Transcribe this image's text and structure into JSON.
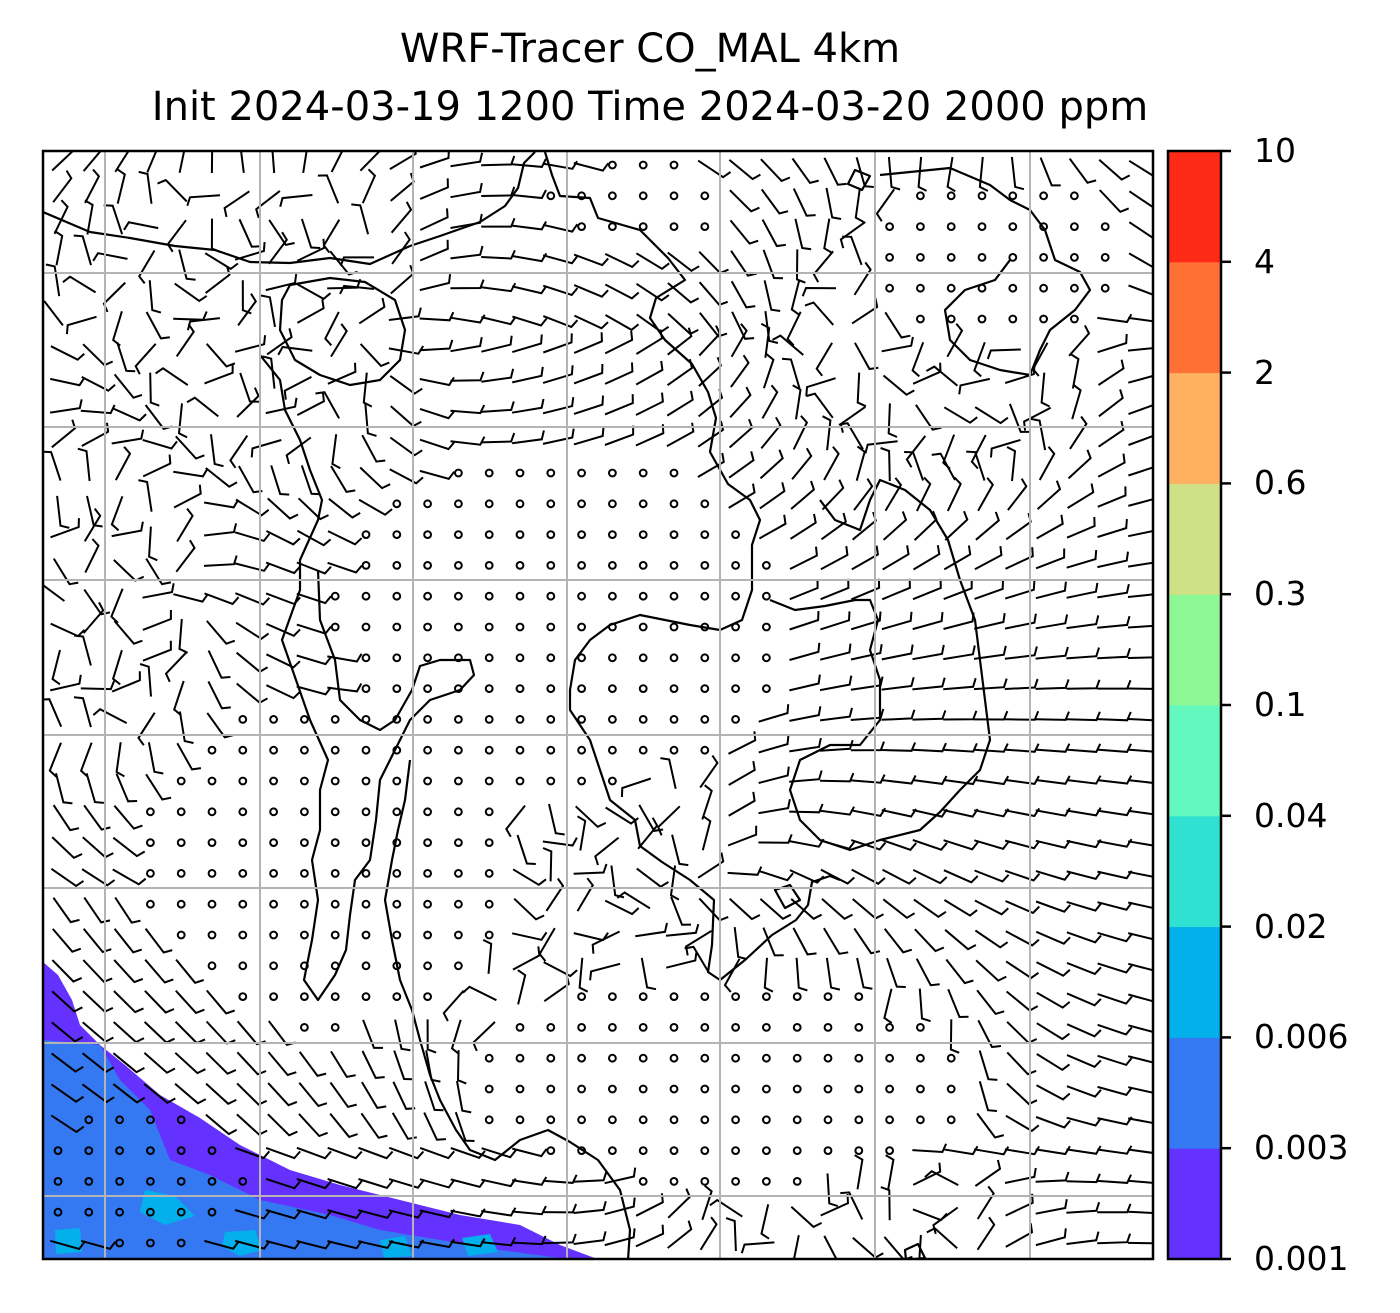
{
  "title": {
    "line1": "WRF-Tracer CO_MAL 4km",
    "line2": "Init 2024-03-19 1200 Time 2024-03-20 2000 ppm"
  },
  "colorbar": {
    "ticks": [
      "0.001",
      "0.003",
      "0.006",
      "0.02",
      "0.04",
      "0.1",
      "0.3",
      "0.6",
      "2",
      "4",
      "10"
    ],
    "colors": [
      "#6531ff",
      "#3579f2",
      "#03b0eb",
      "#30e0d0",
      "#63f8bd",
      "#8ef795",
      "#cfe184",
      "#ffb060",
      "#ff7035",
      "#ff2a16"
    ]
  },
  "map": {
    "colors": {
      "coast": "#000000",
      "grid": "#b4b4b4",
      "tracer_low": "#6531ff",
      "tracer_mid": "#3579f2",
      "tracer_high": "#03b0eb"
    },
    "wind_symbols": [
      "barb",
      "calm-circle"
    ]
  }
}
